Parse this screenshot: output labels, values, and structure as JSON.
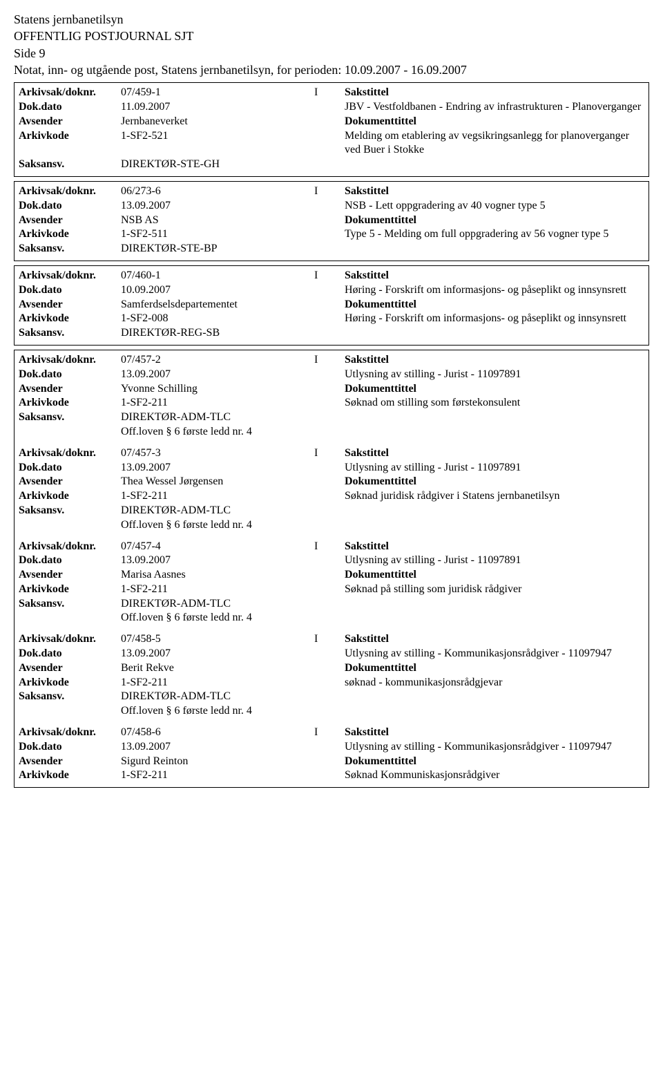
{
  "header": {
    "agency": "Statens jernbanetilsyn",
    "title": "OFFENTLIG POSTJOURNAL SJT",
    "page": "Side 9",
    "period": "Notat, inn- og utgående post, Statens jernbanetilsyn, for perioden: 10.09.2007 - 16.09.2007"
  },
  "labels": {
    "arkivsak": "Arkivsak/doknr.",
    "dokdato": "Dok.dato",
    "avsender": "Avsender",
    "arkivkode": "Arkivkode",
    "saksansv": "Saksansv.",
    "sakstittel": "Sakstittel",
    "dokumenttittel": "Dokumenttittel"
  },
  "entries": [
    {
      "arkivsak": "07/459-1",
      "io": "I",
      "dokdato": "11.09.2007",
      "avsender": "Jernbaneverket",
      "arkivkode": "1-SF2-521",
      "saksansv": "DIREKTØR-STE-GH",
      "sakstittel": "JBV - Vestfoldbanen - Endring av infrastrukturen - Planoverganger",
      "dokumenttittel": "Melding om etablering av vegsikringsanlegg for planoverganger ved Buer i Stokke",
      "offloven": ""
    },
    {
      "arkivsak": "06/273-6",
      "io": "I",
      "dokdato": "13.09.2007",
      "avsender": "NSB AS",
      "arkivkode": "1-SF2-511",
      "saksansv": "DIREKTØR-STE-BP",
      "sakstittel": "NSB - Lett oppgradering av 40 vogner type 5",
      "dokumenttittel": "Type 5 - Melding om full oppgradering av 56 vogner type 5",
      "offloven": ""
    },
    {
      "arkivsak": "07/460-1",
      "io": "I",
      "dokdato": "10.09.2007",
      "avsender": "Samferdselsdepartementet",
      "arkivkode": "1-SF2-008",
      "saksansv": "DIREKTØR-REG-SB",
      "sakstittel": "Høring - Forskrift om informasjons- og påseplikt og innsynsrett",
      "dokumenttittel": "Høring - Forskrift om informasjons- og påseplikt og innsynsrett",
      "offloven": ""
    },
    {
      "arkivsak": "07/457-2",
      "io": "I",
      "dokdato": "13.09.2007",
      "avsender": "Yvonne Schilling",
      "arkivkode": "1-SF2-211",
      "saksansv": "DIREKTØR-ADM-TLC",
      "sakstittel": "Utlysning av stilling - Jurist - 11097891",
      "dokumenttittel": "Søknad om stilling som førstekonsulent",
      "offloven": "Off.loven § 6 første ledd nr. 4"
    },
    {
      "arkivsak": "07/457-3",
      "io": "I",
      "dokdato": "13.09.2007",
      "avsender": "Thea Wessel Jørgensen",
      "arkivkode": "1-SF2-211",
      "saksansv": "DIREKTØR-ADM-TLC",
      "sakstittel": "Utlysning av stilling - Jurist - 11097891",
      "dokumenttittel": "Søknad juridisk rådgiver i Statens jernbanetilsyn",
      "offloven": "Off.loven § 6 første ledd nr. 4"
    },
    {
      "arkivsak": "07/457-4",
      "io": "I",
      "dokdato": "13.09.2007",
      "avsender": "Marisa Aasnes",
      "arkivkode": "1-SF2-211",
      "saksansv": "DIREKTØR-ADM-TLC",
      "sakstittel": "Utlysning av stilling - Jurist - 11097891",
      "dokumenttittel": "Søknad på stilling som juridisk rådgiver",
      "offloven": "Off.loven § 6 første ledd nr. 4"
    },
    {
      "arkivsak": "07/458-5",
      "io": "I",
      "dokdato": "13.09.2007",
      "avsender": "Berit Rekve",
      "arkivkode": "1-SF2-211",
      "saksansv": "DIREKTØR-ADM-TLC",
      "sakstittel": "Utlysning av stilling - Kommunikasjonsrådgiver - 11097947",
      "dokumenttittel": "søknad - kommunikasjonsrådgjevar",
      "offloven": "Off.loven § 6 første ledd nr. 4"
    },
    {
      "arkivsak": "07/458-6",
      "io": "I",
      "dokdato": "13.09.2007",
      "avsender": "Sigurd Reinton",
      "arkivkode": "1-SF2-211",
      "saksansv": "",
      "sakstittel": "Utlysning av stilling - Kommunikasjonsrådgiver - 11097947",
      "dokumenttittel": "Søknad Kommuniskasjonsrådgiver",
      "offloven": ""
    }
  ]
}
